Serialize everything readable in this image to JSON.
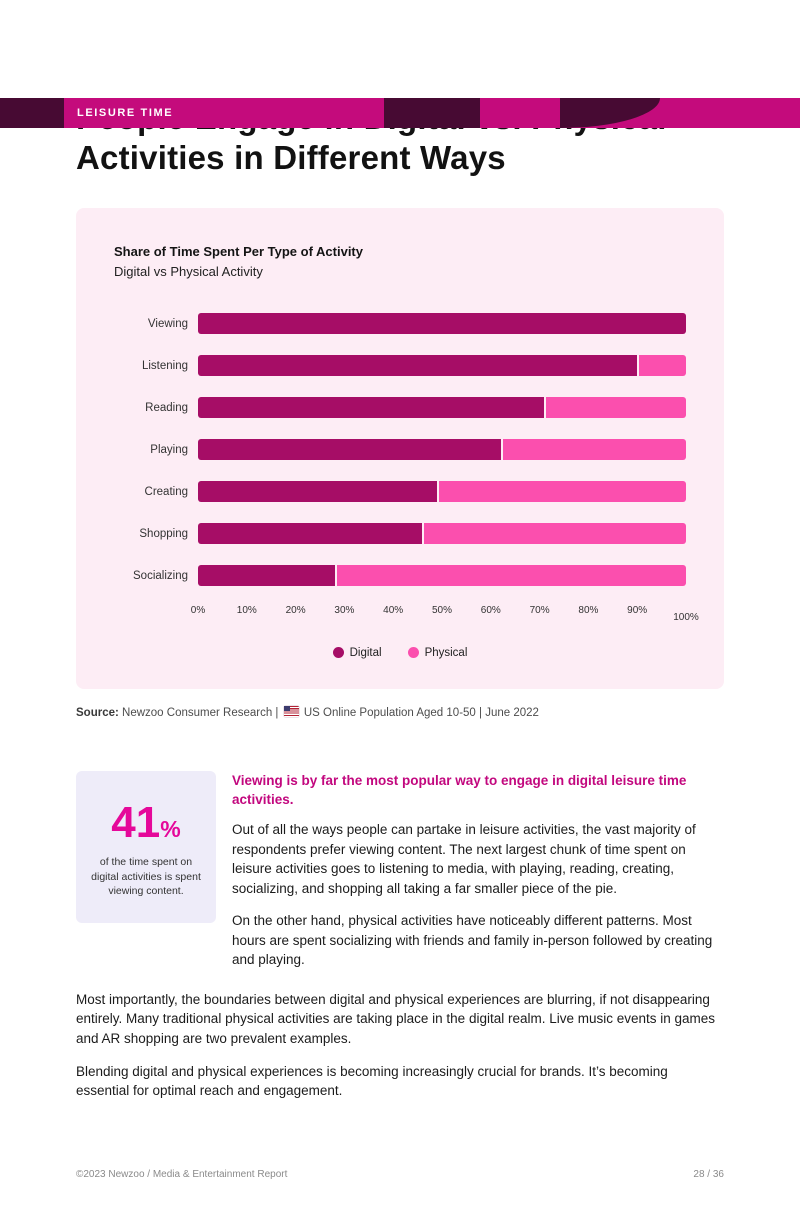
{
  "header": {
    "tag": "LEISURE TIME"
  },
  "title": {
    "line1": "People Engage in Digital vs. Physical",
    "line2": "Activities in Different Ways"
  },
  "chart_data": {
    "type": "bar",
    "stacked": true,
    "orientation": "horizontal",
    "title": "Share of Time Spent Per Type of Activity",
    "subtitle": "Digital vs Physical Activity",
    "categories": [
      "Viewing",
      "Listening",
      "Reading",
      "Playing",
      "Creating",
      "Shopping",
      "Socializing"
    ],
    "series": [
      {
        "name": "Digital",
        "color": "#a60d66",
        "values": [
          100,
          90,
          71,
          62,
          49,
          46,
          28
        ]
      },
      {
        "name": "Physical",
        "color": "#fb4fae",
        "values": [
          0,
          10,
          29,
          38,
          51,
          54,
          72
        ]
      }
    ],
    "x_ticks": [
      "0%",
      "10%",
      "20%",
      "30%",
      "40%",
      "50%",
      "60%",
      "70%",
      "80%",
      "90%",
      "100%"
    ],
    "xlim": [
      0,
      100
    ],
    "grid": false,
    "legend_position": "bottom"
  },
  "source": {
    "label": "Source:",
    "text_before_flag": "Newzoo Consumer Research |",
    "flag_icon": "us-flag",
    "text_after_flag": "US Online Population Aged 10-50 | June 2022"
  },
  "stat": {
    "number": "41",
    "percent_sign": "%",
    "caption": "of the time spent on digital activities is spent viewing content."
  },
  "content": {
    "heading": "Viewing is by far the most popular way to engage in digital leisure time activities.",
    "paragraphs": [
      "Out of all the ways people can partake in leisure activities, the vast majority of respondents prefer viewing content. The next largest chunk of time spent on leisure activities goes to listening to media, with playing, reading, creating, socializing, and shopping all taking a far smaller piece of the pie.",
      "On the other hand, physical activities have noticeably different patterns.  Most hours are spent socializing with friends and family in-person followed by creating and playing."
    ],
    "bottom_paragraphs": [
      "Most importantly, the boundaries between digital and physical experiences are blurring, if not disappearing entirely. Many traditional physical activities are taking place in the digital realm. Live music events in games and AR shopping are two prevalent examples.",
      "Blending digital and physical experiences is becoming increasingly crucial for brands. It’s becoming essential for optimal reach and engagement."
    ]
  },
  "footer": {
    "left": "©2023 Newzoo / Media & Entertainment Report",
    "right": "28 / 36"
  }
}
